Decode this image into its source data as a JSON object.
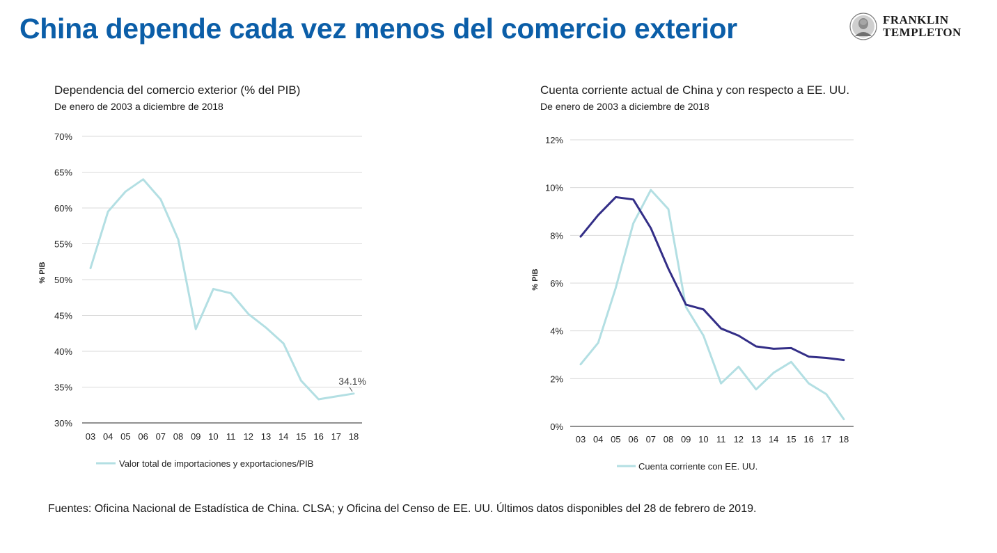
{
  "header": {
    "title": "China depende cada vez menos del comercio exterior",
    "logo_text": [
      "FRANKLIN",
      "TEMPLETON"
    ],
    "logo_icon": "franklin-portrait-seal"
  },
  "colors": {
    "title": "#0b5ea8",
    "light_series": "#b3dfe3",
    "dark_series": "#332e87",
    "grid": "#d9d9d9",
    "axis": "#222222"
  },
  "chart_data": [
    {
      "type": "line",
      "title": "Dependencia del comercio exterior (% del PIB)",
      "subtitle": "De enero de 2003 a diciembre de 2018",
      "ylabel": "% PIB",
      "xlabel": "",
      "ylim": [
        30,
        70
      ],
      "yticks": [
        "30%",
        "35%",
        "40%",
        "45%",
        "50%",
        "55%",
        "60%",
        "65%",
        "70%"
      ],
      "ytick_values": [
        30,
        35,
        40,
        45,
        50,
        55,
        60,
        65,
        70
      ],
      "grid": true,
      "legend_position": "bottom",
      "x": [
        2003,
        2004,
        2005,
        2006,
        2007,
        2008,
        2009,
        2010,
        2011,
        2012,
        2013,
        2014,
        2015,
        2016,
        2017,
        2018
      ],
      "xtick_labels": [
        "03",
        "04",
        "05",
        "06",
        "07",
        "08",
        "09",
        "10",
        "11",
        "12",
        "13",
        "14",
        "15",
        "16",
        "17",
        "18"
      ],
      "series": [
        {
          "name": "Valor total de importaciones y exportaciones/PIB",
          "color": "#b3dfe3",
          "values": [
            51.6,
            59.5,
            62.3,
            64.0,
            61.2,
            55.6,
            43.1,
            48.7,
            48.1,
            45.2,
            43.3,
            41.1,
            35.9,
            33.3,
            33.7,
            34.1
          ]
        }
      ],
      "annotations": [
        {
          "text": "34.1%",
          "x": 2018,
          "y": 34.1
        }
      ]
    },
    {
      "type": "line",
      "title": "Cuenta corriente actual de China y con respecto a EE. UU.",
      "subtitle": "De enero de 2003 a diciembre de 2018",
      "ylabel": "% PIB",
      "xlabel": "",
      "ylim": [
        0,
        12
      ],
      "yticks": [
        "0%",
        "2%",
        "4%",
        "6%",
        "8%",
        "10%",
        "12%"
      ],
      "ytick_values": [
        0,
        2,
        4,
        6,
        8,
        10,
        12
      ],
      "grid": true,
      "legend_position": "bottom",
      "x": [
        2003,
        2004,
        2005,
        2006,
        2007,
        2008,
        2009,
        2010,
        2011,
        2012,
        2013,
        2014,
        2015,
        2016,
        2017,
        2018
      ],
      "xtick_labels": [
        "03",
        "04",
        "05",
        "06",
        "07",
        "08",
        "09",
        "10",
        "11",
        "12",
        "13",
        "14",
        "15",
        "16",
        "17",
        "18"
      ],
      "series": [
        {
          "name": "Cuenta corriente con EE. UU.",
          "color": "#b3dfe3",
          "values": [
            2.6,
            3.5,
            5.8,
            8.5,
            9.9,
            9.1,
            5.0,
            3.8,
            1.8,
            2.5,
            1.55,
            2.25,
            2.7,
            1.8,
            1.35,
            0.3
          ]
        },
        {
          "color": "#332e87",
          "values": [
            7.95,
            8.85,
            9.6,
            9.5,
            8.3,
            6.6,
            5.1,
            4.9,
            4.1,
            3.8,
            3.35,
            3.25,
            3.28,
            2.92,
            2.87,
            2.78
          ]
        }
      ],
      "annotations": []
    }
  ],
  "footer": {
    "sources": "Fuentes: Oficina Nacional de Estadística de China. CLSA; y Oficina del Censo de EE. UU. Últimos datos disponibles del 28 de febrero de 2019."
  }
}
